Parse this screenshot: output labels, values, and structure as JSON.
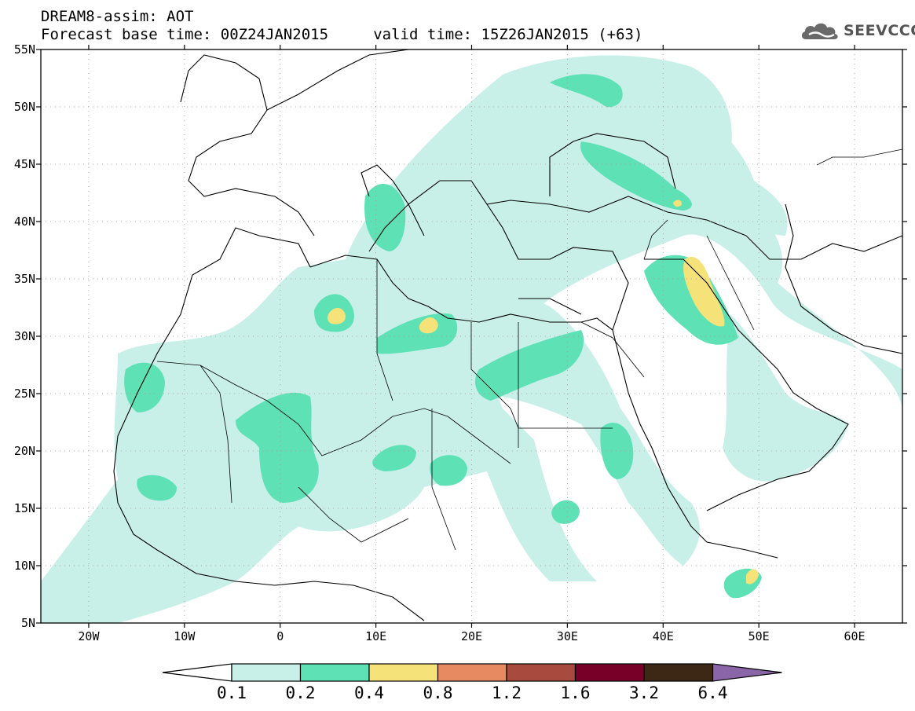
{
  "title": {
    "line1": "DREAM8-assim: AOT",
    "line2": "Forecast base time: 00Z24JAN2015     valid time: 15Z26JAN2015 (+63)"
  },
  "logo": {
    "text": "SEEVCCC",
    "icon": "cloud-logo-icon"
  },
  "map": {
    "lon_range": [
      -25,
      65
    ],
    "lat_range": [
      5,
      55
    ],
    "lat_ticks": [
      {
        "value": 55,
        "label": "55N"
      },
      {
        "value": 50,
        "label": "50N"
      },
      {
        "value": 45,
        "label": "45N"
      },
      {
        "value": 40,
        "label": "40N"
      },
      {
        "value": 35,
        "label": "35N"
      },
      {
        "value": 30,
        "label": "30N"
      },
      {
        "value": 25,
        "label": "25N"
      },
      {
        "value": 20,
        "label": "20N"
      },
      {
        "value": 15,
        "label": "15N"
      },
      {
        "value": 10,
        "label": "10N"
      },
      {
        "value": 5,
        "label": "5N"
      }
    ],
    "lon_ticks": [
      {
        "value": -20,
        "label": "20W"
      },
      {
        "value": -10,
        "label": "10W"
      },
      {
        "value": 0,
        "label": "0"
      },
      {
        "value": 10,
        "label": "10E"
      },
      {
        "value": 20,
        "label": "20E"
      },
      {
        "value": 30,
        "label": "30E"
      },
      {
        "value": 40,
        "label": "40E"
      },
      {
        "value": 50,
        "label": "50E"
      },
      {
        "value": 60,
        "label": "60E"
      }
    ],
    "grid": true
  },
  "colorbar": {
    "labels": [
      "0.1",
      "0.2",
      "0.4",
      "0.8",
      "1.2",
      "1.6",
      "3.2",
      "6.4"
    ],
    "colors": [
      "#ffffff",
      "#c8f0e8",
      "#5ee1b5",
      "#f5e37a",
      "#e78a61",
      "#a84a3d",
      "#780028",
      "#3c2814",
      "#8a66a8"
    ]
  }
}
